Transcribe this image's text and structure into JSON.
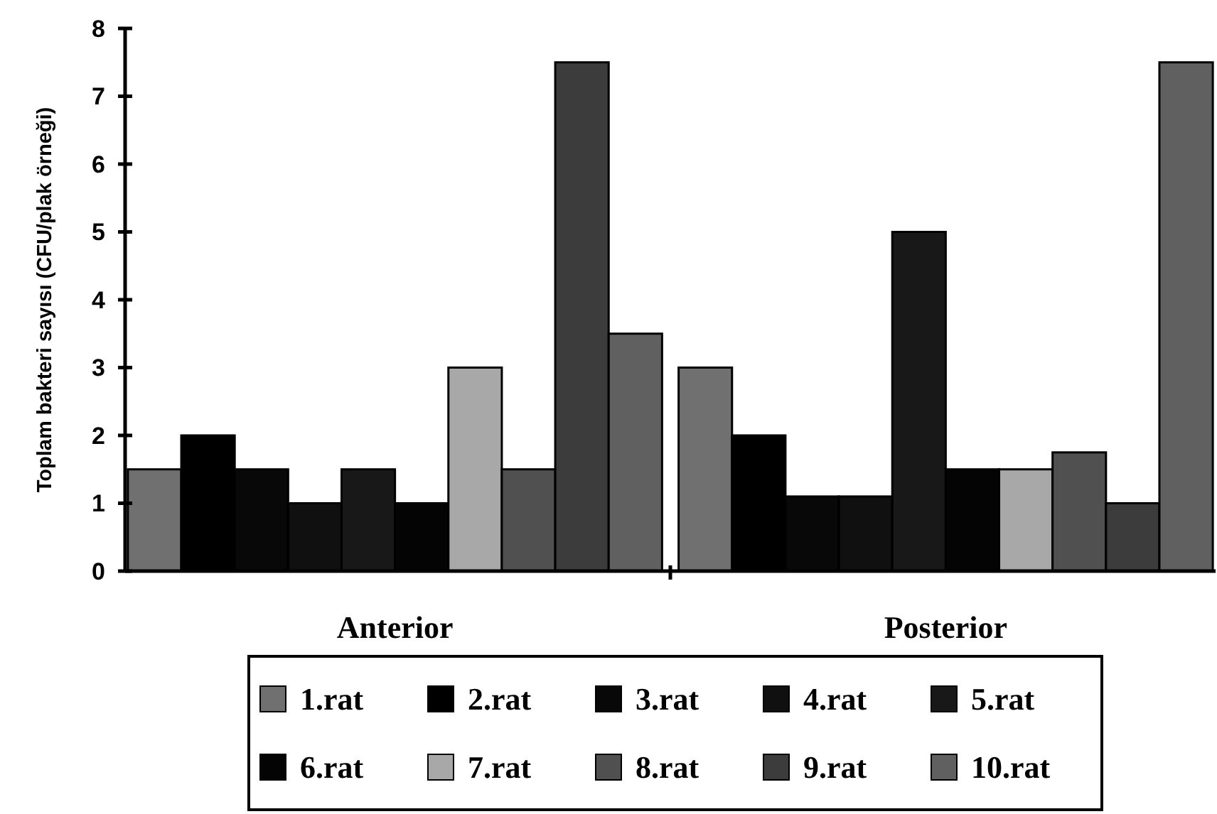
{
  "chart_data": {
    "type": "bar",
    "ylabel": "Toplam bakteri sayısı (CFU/plak örneği)",
    "categories": [
      "Anterior",
      "Posterior"
    ],
    "ylim": [
      0,
      8
    ],
    "yticks": [
      0,
      1,
      2,
      3,
      4,
      5,
      6,
      7,
      8
    ],
    "grid": false,
    "legend": "bottom",
    "series": [
      {
        "name": "1.rat",
        "color": "#707070",
        "values": [
          1.5,
          3
        ]
      },
      {
        "name": "2.rat",
        "color": "#000000",
        "values": [
          2,
          2
        ]
      },
      {
        "name": "3.rat",
        "color": "#080808",
        "values": [
          1.5,
          1.1
        ]
      },
      {
        "name": "4.rat",
        "color": "#101010",
        "values": [
          1,
          1.1
        ]
      },
      {
        "name": "5.rat",
        "color": "#181818",
        "values": [
          1.5,
          5
        ]
      },
      {
        "name": "6.rat",
        "color": "#040404",
        "values": [
          1,
          1.5
        ]
      },
      {
        "name": "7.rat",
        "color": "#a8a8a8",
        "values": [
          3,
          1.5
        ]
      },
      {
        "name": "8.rat",
        "color": "#505050",
        "values": [
          1.5,
          1.75
        ]
      },
      {
        "name": "9.rat",
        "color": "#3c3c3c",
        "values": [
          7.5,
          1
        ]
      },
      {
        "name": "10.rat",
        "color": "#606060",
        "values": [
          3.5,
          7.5
        ]
      }
    ]
  }
}
